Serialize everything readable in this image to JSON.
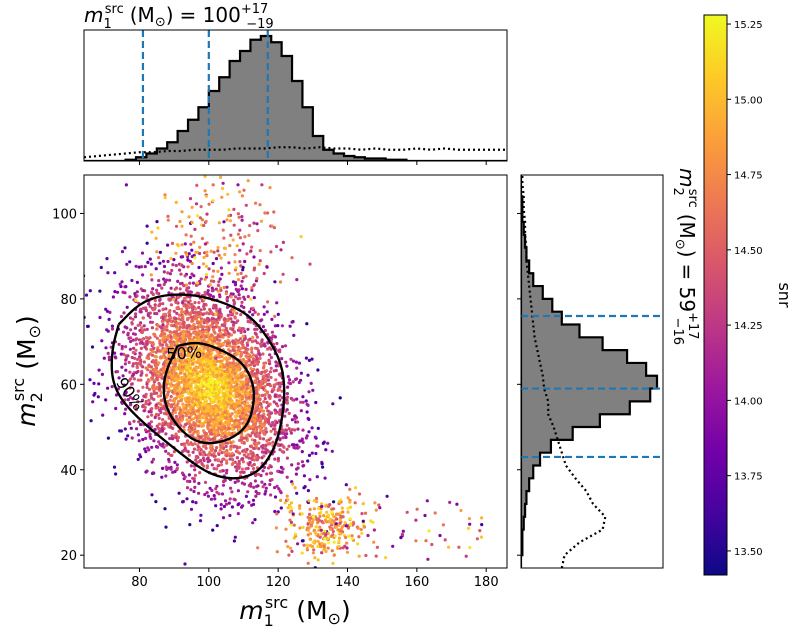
{
  "chart_data": {
    "type": "scatter",
    "description_panels": [
      "top-marginal-histogram",
      "main-scatter",
      "right-marginal-histogram",
      "colorbar"
    ],
    "top_title": {
      "base": "m",
      "sub": "1",
      "sup": "src",
      "unit": "(M",
      "unit_sub": "⊙",
      "unit_close": ")",
      "eq": "= 100",
      "plus": "+17",
      "minus": "−19"
    },
    "right_title": {
      "base": "m",
      "sub": "2",
      "sup": "src",
      "unit": "(M",
      "unit_sub": "⊙",
      "unit_close": ")",
      "eq": "= 59",
      "plus": "+17",
      "minus": "−16"
    },
    "xlabel": {
      "base": "m",
      "sub": "1",
      "sup": "src",
      "unit": "(M",
      "unit_sub": "⊙",
      "unit_close": ")"
    },
    "ylabel": {
      "base": "m",
      "sub": "2",
      "sup": "src",
      "unit": "(M",
      "unit_sub": "⊙",
      "unit_close": ")"
    },
    "xlim": [
      64,
      186
    ],
    "ylim": [
      17,
      109
    ],
    "xticks": [
      "80",
      "100",
      "120",
      "140",
      "160",
      "180"
    ],
    "xtick_values": [
      80,
      100,
      120,
      140,
      160,
      180
    ],
    "yticks": [
      "20",
      "40",
      "60",
      "80",
      "100"
    ],
    "ytick_values": [
      20,
      40,
      60,
      80,
      100
    ],
    "m1_quantiles": [
      81,
      100,
      117
    ],
    "m2_quantiles": [
      43,
      59,
      76
    ],
    "colorbar": {
      "label": "snr",
      "range": [
        13.42,
        15.28
      ],
      "ticks": [
        "13.50",
        "13.75",
        "14.00",
        "14.25",
        "14.50",
        "14.75",
        "15.00",
        "15.25"
      ],
      "tick_values": [
        13.5,
        13.75,
        14.0,
        14.25,
        14.5,
        14.75,
        15.0,
        15.25
      ],
      "colormap": "plasma",
      "stops": [
        "#0d0887",
        "#46039f",
        "#7201a8",
        "#9c179e",
        "#bd3786",
        "#d8576b",
        "#ed7953",
        "#fb9f3a",
        "#fdca26",
        "#f0f921"
      ]
    },
    "contours": [
      {
        "label": "50%",
        "points": [
          [
            91,
            69
          ],
          [
            97,
            70
          ],
          [
            104,
            68
          ],
          [
            110,
            65
          ],
          [
            113,
            60
          ],
          [
            113,
            55
          ],
          [
            111,
            50
          ],
          [
            106,
            47
          ],
          [
            100,
            46
          ],
          [
            95,
            47
          ],
          [
            90,
            51
          ],
          [
            87,
            56
          ],
          [
            87,
            62
          ],
          [
            91,
            69
          ]
        ]
      },
      {
        "label": "90%",
        "points": [
          [
            74,
            74
          ],
          [
            80,
            79
          ],
          [
            87,
            81
          ],
          [
            96,
            81
          ],
          [
            105,
            79
          ],
          [
            112,
            76
          ],
          [
            117,
            71
          ],
          [
            121,
            65
          ],
          [
            122,
            58
          ],
          [
            121,
            51
          ],
          [
            119,
            45
          ],
          [
            115,
            40
          ],
          [
            110,
            38
          ],
          [
            104,
            38
          ],
          [
            98,
            40
          ],
          [
            90,
            45
          ],
          [
            81,
            51
          ],
          [
            75,
            56
          ],
          [
            72,
            61
          ],
          [
            72,
            68
          ],
          [
            74,
            74
          ]
        ]
      }
    ],
    "contour_labels": [
      {
        "text": "50%",
        "x": 93,
        "y": 66,
        "rotate": -4
      },
      {
        "text": "90%",
        "x": 76,
        "y": 57,
        "rotate": 55
      }
    ],
    "m1_hist": {
      "edges_start": 64,
      "bin_width": 3,
      "counts": [
        0.0,
        0.0,
        0.0,
        0.0,
        0.01,
        0.03,
        0.06,
        0.1,
        0.15,
        0.24,
        0.33,
        0.43,
        0.56,
        0.67,
        0.8,
        0.88,
        0.97,
        1.0,
        0.95,
        0.84,
        0.64,
        0.43,
        0.2,
        0.09,
        0.06,
        0.04,
        0.03,
        0.02,
        0.02,
        0.01,
        0.01,
        0.0,
        0.0,
        0.0,
        0.0,
        0.0,
        0.0,
        0.0,
        0.0,
        0.0,
        0.0
      ]
    },
    "m1_prior": {
      "x": [
        64,
        68,
        72,
        76,
        80,
        84,
        88,
        92,
        96,
        100,
        104,
        108,
        112,
        116,
        120,
        124,
        128,
        132,
        136,
        140,
        144,
        148,
        152,
        156,
        160,
        164,
        168,
        172,
        176,
        180,
        184,
        186
      ],
      "y": [
        0.03,
        0.04,
        0.05,
        0.06,
        0.07,
        0.07,
        0.08,
        0.08,
        0.09,
        0.09,
        0.09,
        0.1,
        0.1,
        0.1,
        0.11,
        0.11,
        0.1,
        0.11,
        0.1,
        0.1,
        0.09,
        0.1,
        0.09,
        0.09,
        0.1,
        0.09,
        0.1,
        0.09,
        0.09,
        0.09,
        0.09,
        0.09
      ]
    },
    "m2_hist": {
      "edges_start": 17,
      "bin_width": 3,
      "counts": [
        0.0,
        0.01,
        0.01,
        0.02,
        0.03,
        0.04,
        0.06,
        0.09,
        0.14,
        0.22,
        0.38,
        0.58,
        0.8,
        0.95,
        1.0,
        0.92,
        0.78,
        0.6,
        0.43,
        0.3,
        0.23,
        0.16,
        0.09,
        0.06,
        0.04,
        0.03,
        0.02,
        0.01,
        0.01,
        0.0,
        0.0
      ]
    },
    "m2_prior": {
      "y": [
        17,
        20,
        23,
        26,
        29,
        32,
        35,
        38,
        41,
        44,
        47,
        50,
        53,
        56,
        59,
        62,
        65,
        68,
        71,
        74,
        77,
        80,
        83,
        86,
        89,
        92,
        95,
        98,
        101,
        104,
        107,
        109
      ],
      "x": [
        0.3,
        0.32,
        0.43,
        0.6,
        0.62,
        0.53,
        0.48,
        0.4,
        0.33,
        0.3,
        0.27,
        0.24,
        0.2,
        0.2,
        0.17,
        0.16,
        0.14,
        0.12,
        0.1,
        0.09,
        0.08,
        0.07,
        0.06,
        0.05,
        0.04,
        0.04,
        0.03,
        0.03,
        0.02,
        0.02,
        0.01,
        0.01
      ]
    }
  }
}
